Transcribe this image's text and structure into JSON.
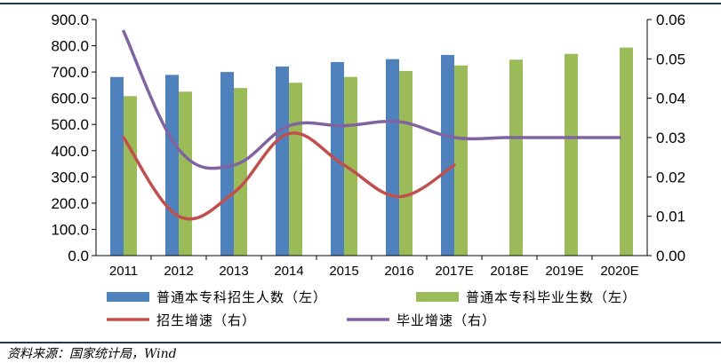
{
  "chart_data": {
    "type": "bar",
    "categories": [
      "2011",
      "2012",
      "2013",
      "2014",
      "2015",
      "2016",
      "2017E",
      "2018E",
      "2019E",
      "2020E"
    ],
    "series": [
      {
        "name": "普通本专科招生人数（左）",
        "kind": "bar",
        "axis": "left",
        "color": "#4f81bd",
        "values": [
          681,
          689,
          700,
          721,
          738,
          749,
          765,
          null,
          null,
          null
        ]
      },
      {
        "name": "普通本专科毕业生数（左）",
        "kind": "bar",
        "axis": "left",
        "color": "#9bbb59",
        "values": [
          608,
          625,
          639,
          659,
          681,
          704,
          725,
          747,
          769,
          793
        ]
      },
      {
        "name": "招生增速（右）",
        "kind": "line",
        "axis": "right",
        "color": "#c0504d",
        "values": [
          0.03,
          0.01,
          0.016,
          0.031,
          0.023,
          0.015,
          0.023,
          null,
          null,
          null
        ]
      },
      {
        "name": "毕业增速（右）",
        "kind": "line",
        "axis": "right",
        "color": "#8064a2",
        "values": [
          0.057,
          0.027,
          0.023,
          0.033,
          0.033,
          0.034,
          0.03,
          0.03,
          0.03,
          0.03
        ]
      }
    ],
    "y_left": {
      "min": 0,
      "max": 900,
      "ticks": [
        "0.0",
        "100.0",
        "200.0",
        "300.0",
        "400.0",
        "500.0",
        "600.0",
        "700.0",
        "800.0",
        "900.0"
      ]
    },
    "y_right": {
      "min": 0,
      "max": 0.06,
      "ticks": [
        "0.00",
        "0.01",
        "0.02",
        "0.03",
        "0.04",
        "0.05",
        "0.06"
      ]
    },
    "grid": false,
    "legend_position": "bottom"
  },
  "source_note": "资料来源：国家统计局，Wind"
}
